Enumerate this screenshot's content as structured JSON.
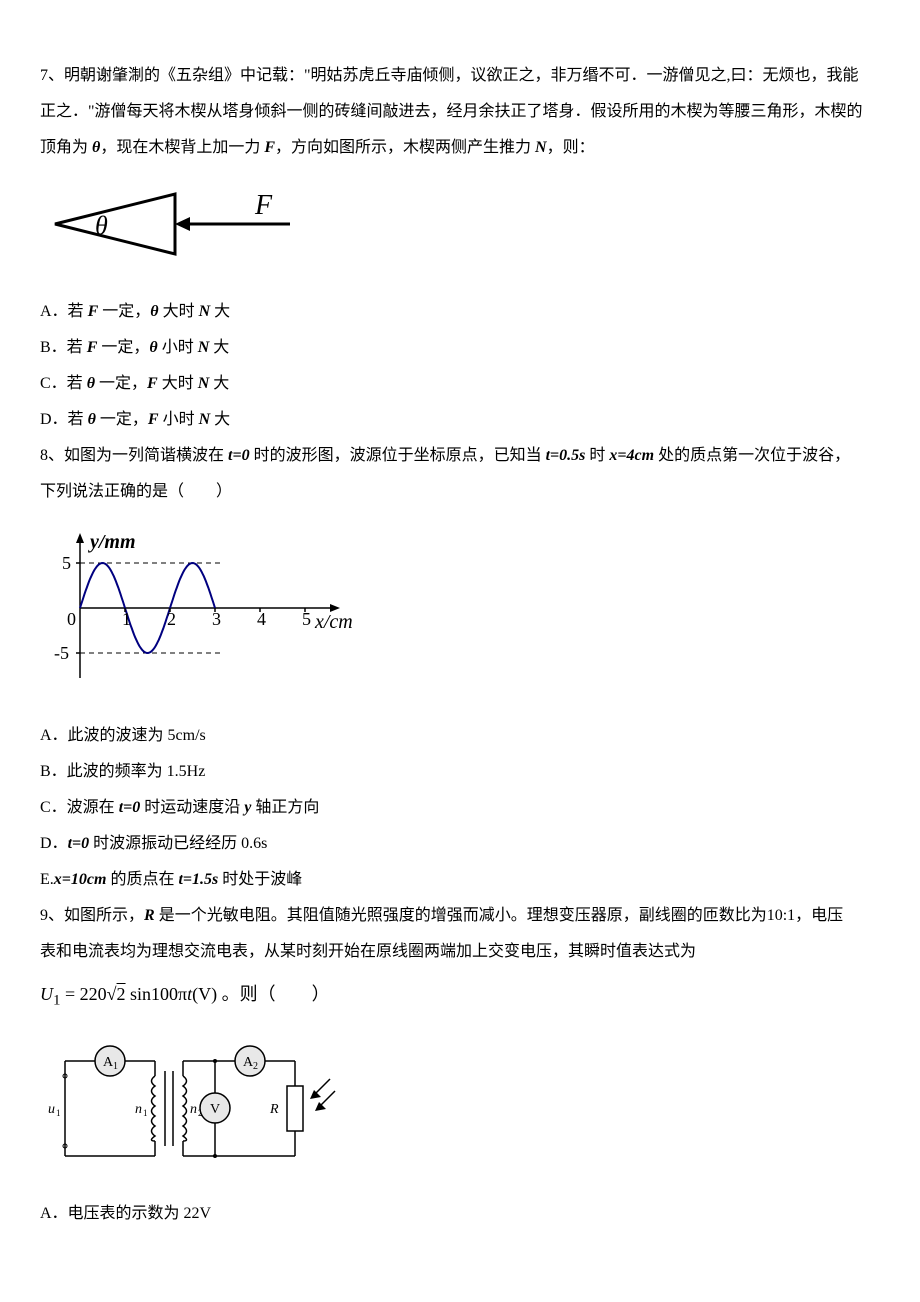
{
  "q7": {
    "number": "7、",
    "text_line1": "明朝谢肇淛的《五杂组》中记载：\"明姑苏虎丘寺庙倾侧，议欲正之，非万缗不可．一游僧见之,曰：无烦也，我能",
    "text_line2": "正之．\"游僧每天将木楔从塔身倾斜一侧的砖缝间敲进去，经月余扶正了塔身．假设所用的木楔为等腰三角形，木楔的",
    "text_line3": "顶角为 ",
    "theta": "θ",
    "text_line3b": "，现在木楔背上加一力 ",
    "F": "F",
    "text_line3c": "，方向如图所示，木楔两侧产生推力 ",
    "N": "N",
    "text_line3d": "，则：",
    "optA_pre": "A．若 ",
    "optA_mid1": " 一定，",
    "optA_mid2": " 大时 ",
    "optA_end": " 大",
    "optB_pre": "B．若 ",
    "optB_mid1": " 一定，",
    "optB_mid2": " 小时 ",
    "optB_end": " 大",
    "optC_pre": "C．若 ",
    "optC_mid1": " 一定，",
    "optC_mid2": " 大时 ",
    "optC_end": " 大",
    "optD_pre": "D．若 ",
    "optD_mid1": " 一定，",
    "optD_mid2": " 小时 ",
    "optD_end": " 大",
    "wedge_fig": {
      "theta_label": "θ",
      "F_label": "F",
      "stroke": "#000000",
      "stroke_width": 3,
      "font_size": 24
    }
  },
  "q8": {
    "number": "8、",
    "text_line1a": "如图为一列简谐横波在 ",
    "t0": "t=0",
    "text_line1b": " 时的波形图，波源位于坐标原点，已知当 ",
    "t05": "t=0.5s",
    "text_line1c": " 时 ",
    "x4": "x=4cm",
    "text_line1d": " 处的质点第一次位于波谷，",
    "text_line2": "下列说法正确的是（　　）",
    "optA": "A．此波的波速为 5cm/s",
    "optB": "B．此波的频率为 1.5Hz",
    "optC_pre": "C．波源在 ",
    "optC_mid": " 时运动速度沿 ",
    "y": "y",
    "optC_end": " 轴正方向",
    "optD_pre": "D．",
    "optD_end": " 时波源振动已经经历 0.6s",
    "optE_pre": "E.",
    "x10": "x=10cm",
    "optE_mid": " 的质点在 ",
    "t15": "t=1.5s",
    "optE_end": " 时处于波峰",
    "wave_fig": {
      "y_label": "y/mm",
      "x_label": "x/cm",
      "y_max": 5,
      "y_min": -5,
      "y_tick_pos": "5",
      "y_tick_neg": "-5",
      "x_ticks": [
        "0",
        "1",
        "2",
        "3",
        "4",
        "5"
      ],
      "wave_color": "#000080",
      "stroke_width": 2,
      "grid_dash": "4,3",
      "font_size": 18,
      "amplitude": 5,
      "wavelength": 2,
      "visible_waves_end": 3
    }
  },
  "q9": {
    "number": "9、",
    "text_line1a": "如图所示，",
    "R": "R",
    "text_line1b": " 是一个光敏电阻。其阻值随光照强度的增强而减小。理想变压器原，副线圈的匝数比为",
    "ratio": "10:1",
    "text_line1c": "，电压",
    "text_line2": "表和电流表均为理想交流电表，从某时刻开始在原线圈两端加上交变电压，其瞬时值表达式为",
    "formula_u": "U",
    "formula_sub": "1",
    "formula_eq": " = 220",
    "formula_sqrt": "2",
    "formula_sin": " sin100π",
    "formula_t": "t",
    "formula_v": "(V)",
    "formula_end": " 。则（　　）",
    "optA": "A．电压表的示数为 22V",
    "circuit_fig": {
      "A1": "A",
      "A1_sub": "1",
      "A2": "A",
      "A2_sub": "2",
      "V": "V",
      "n1": "n",
      "n1_sub": "1",
      "n2": "n",
      "n2_sub": "2",
      "u1": "u",
      "u1_sub": "1",
      "R": "R",
      "stroke": "#000000",
      "stroke_width": 1.5,
      "font_size": 14
    }
  }
}
